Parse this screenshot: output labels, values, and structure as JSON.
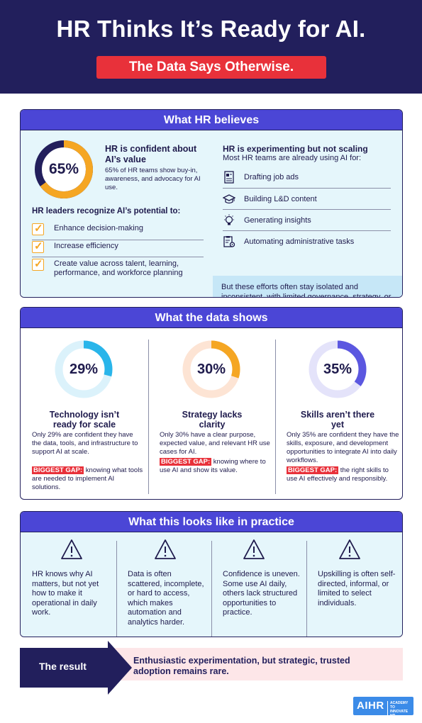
{
  "header": {
    "title": "HR Thinks It’s Ready for AI.",
    "subtitle": "The Data Says Otherwise."
  },
  "believes": {
    "heading": "What HR believes",
    "stat": {
      "value": 65,
      "label": "65%"
    },
    "confident_title": "HR is confident about AI’s value",
    "confident_desc": "65% of HR teams show buy-in, awareness, and advocacy for AI use.",
    "potential_lead": "HR leaders recognize AI’s potential to:",
    "potential_items": [
      "Enhance decision-making",
      "Increase efficiency",
      "Create value across talent, learning, performance, and workforce planning"
    ],
    "experimenting_title": "HR is experimenting but not scaling",
    "experimenting_sub": "Most HR teams are already using AI for:",
    "uses": [
      {
        "icon": "document-icon",
        "label": "Drafting job ads"
      },
      {
        "icon": "graduation-cap-icon",
        "label": "Building L&D content"
      },
      {
        "icon": "lightbulb-icon",
        "label": "Generating insights"
      },
      {
        "icon": "clipboard-gear-icon",
        "label": "Automating administrative tasks"
      }
    ],
    "note": "But these efforts often stay isolated and inconsistent, with limited governance, strategy, or skill development support."
  },
  "data_shows": {
    "heading": "What the data shows",
    "columns": [
      {
        "value": 29,
        "label": "29%",
        "color": "#29b5ea",
        "track": "#dbf2fb",
        "title": "Technology isn’t ready for scale",
        "desc": "Only 29% are confident they have the data, tools, and infrastructure to support AI at scale.",
        "gap_label": "BIGGEST GAP:",
        "gap_text": " knowing what tools are needed to implement AI solutions."
      },
      {
        "value": 30,
        "label": "30%",
        "color": "#f5a623",
        "track": "#fde4d4",
        "title": "Strategy lacks clarity",
        "desc": "Only 30% have a clear purpose, expected value, and relevant HR use cases for AI.",
        "gap_label": "BIGGEST GAP:",
        "gap_text": " knowing where to use AI and show its value."
      },
      {
        "value": 35,
        "label": "35%",
        "color": "#5b57e0",
        "track": "#e4e3fa",
        "title": "Skills aren’t there yet",
        "desc": "Only 35% are confident they have the skills, exposure, and development opportunities to integrate AI into daily workflows.",
        "gap_label": "BIGGEST GAP:",
        "gap_text": " the right skills to use AI effectively and responsibly."
      }
    ]
  },
  "practice": {
    "heading": "What this looks like in practice",
    "items": [
      "HR knows why AI matters, but not yet how to make it operational in daily work.",
      "Data is often scattered, incomplete, or hard to access, which makes automation and analytics harder.",
      "Confidence is uneven. Some use AI daily, others lack structured opportunities to practice.",
      "Upskilling is often self-directed, informal, or limited to select individuals."
    ]
  },
  "result": {
    "label": "The result",
    "text": "Enthusiastic experimentation, but strategic, trusted adoption remains rare."
  },
  "logo": {
    "brand": "AIHR",
    "tagline": "ACADEMY TO INNOVATE HR"
  },
  "colors": {
    "navy": "#221f5c",
    "accent_red": "#e8313a",
    "section_blue": "#4b46d6",
    "light_blue": "#e5f6fb",
    "orange": "#f5a623"
  }
}
